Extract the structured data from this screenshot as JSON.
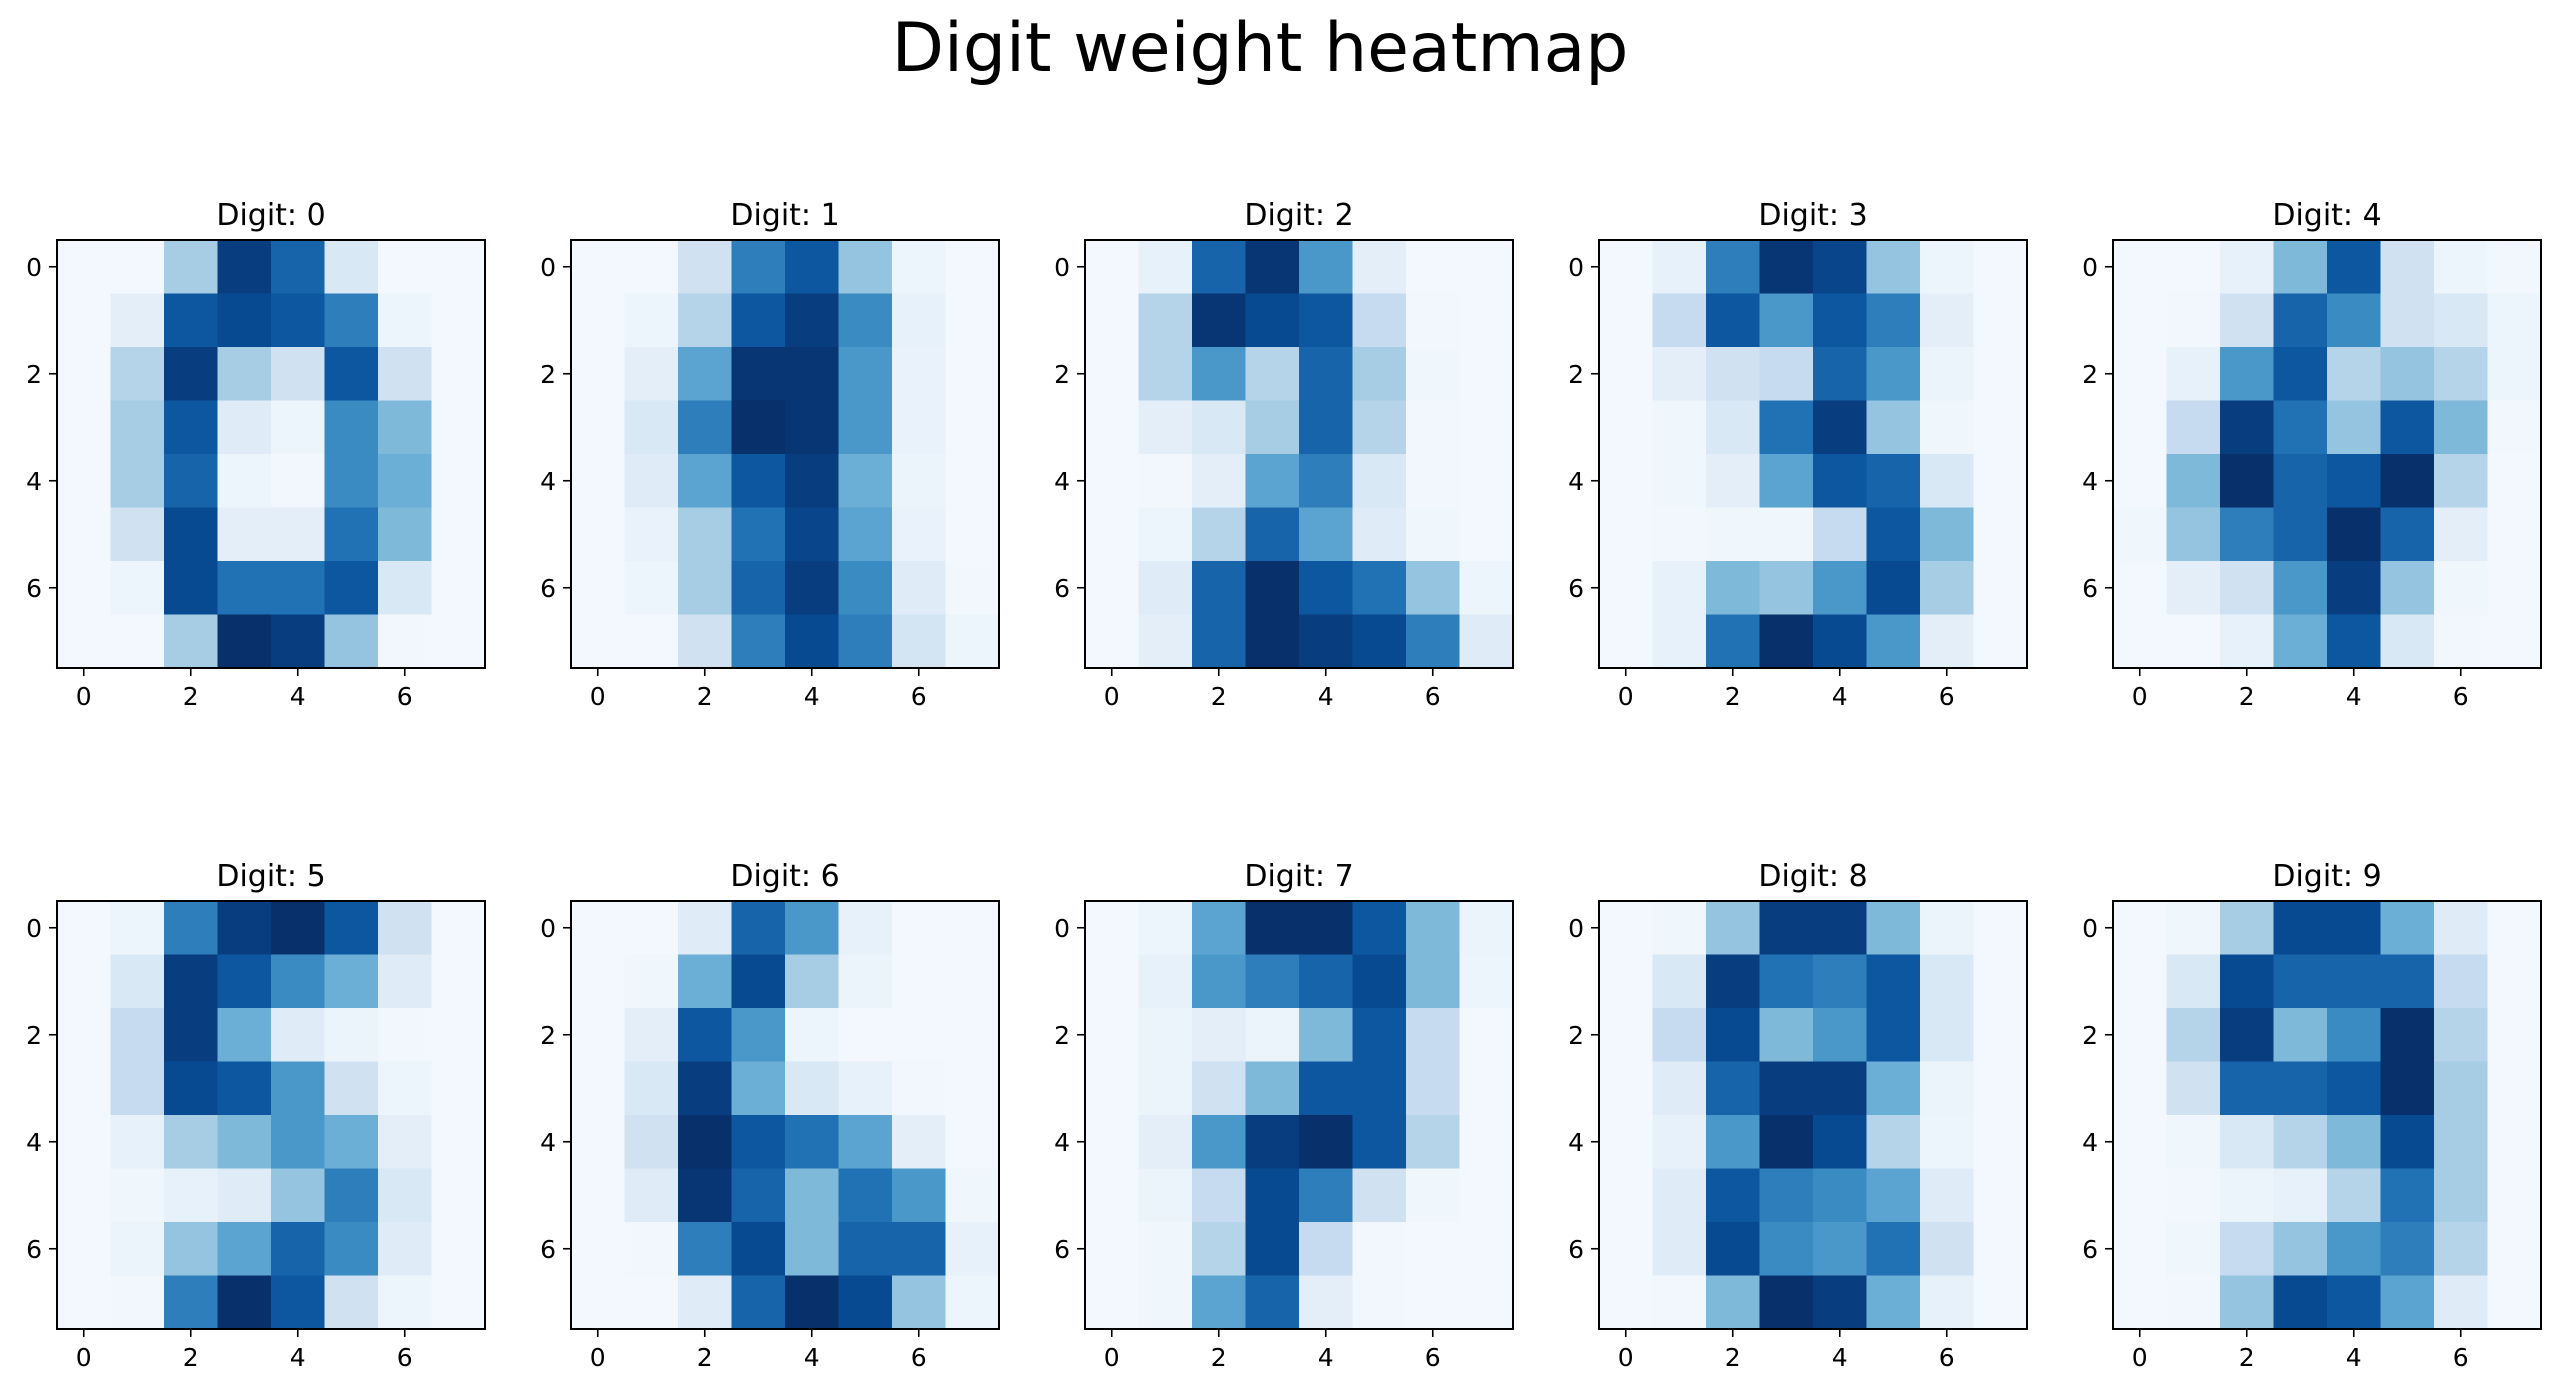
{
  "page": {
    "title": "Digit weight heatmap"
  },
  "chart_data": {
    "type": "heatmap",
    "title": "Digit weight heatmap",
    "colormap": "Blues",
    "layout": "2 rows x 5 columns",
    "grid": false,
    "x_ticks": [
      "0",
      "2",
      "4",
      "6"
    ],
    "y_ticks": [
      "0",
      "2",
      "4",
      "6"
    ],
    "xlim": [
      -0.5,
      7.5
    ],
    "ylim": [
      7.5,
      -0.5
    ],
    "value_range": [
      0,
      1
    ],
    "panels": [
      {
        "title": "Digit: 0",
        "values": [
          [
            0.02,
            0.02,
            0.35,
            0.95,
            0.8,
            0.15,
            0.02,
            0.02
          ],
          [
            0.02,
            0.1,
            0.85,
            0.9,
            0.85,
            0.7,
            0.05,
            0.02
          ],
          [
            0.02,
            0.3,
            0.95,
            0.35,
            0.2,
            0.85,
            0.2,
            0.02
          ],
          [
            0.02,
            0.35,
            0.85,
            0.12,
            0.05,
            0.65,
            0.45,
            0.02
          ],
          [
            0.02,
            0.35,
            0.8,
            0.05,
            0.03,
            0.65,
            0.5,
            0.02
          ],
          [
            0.02,
            0.2,
            0.9,
            0.1,
            0.1,
            0.75,
            0.45,
            0.02
          ],
          [
            0.02,
            0.05,
            0.9,
            0.75,
            0.75,
            0.85,
            0.15,
            0.02
          ],
          [
            0.02,
            0.02,
            0.35,
            1.0,
            0.95,
            0.4,
            0.03,
            0.02
          ]
        ]
      },
      {
        "title": "Digit: 1",
        "values": [
          [
            0.02,
            0.02,
            0.2,
            0.7,
            0.85,
            0.4,
            0.05,
            0.02
          ],
          [
            0.02,
            0.05,
            0.3,
            0.85,
            0.95,
            0.65,
            0.08,
            0.02
          ],
          [
            0.02,
            0.1,
            0.55,
            0.98,
            0.98,
            0.6,
            0.07,
            0.02
          ],
          [
            0.02,
            0.15,
            0.7,
            1.0,
            0.98,
            0.6,
            0.07,
            0.02
          ],
          [
            0.02,
            0.12,
            0.55,
            0.85,
            0.95,
            0.5,
            0.06,
            0.02
          ],
          [
            0.02,
            0.07,
            0.35,
            0.75,
            0.92,
            0.55,
            0.07,
            0.02
          ],
          [
            0.02,
            0.05,
            0.35,
            0.8,
            0.95,
            0.65,
            0.12,
            0.03
          ],
          [
            0.02,
            0.02,
            0.2,
            0.7,
            0.9,
            0.7,
            0.18,
            0.05
          ]
        ]
      },
      {
        "title": "Digit: 2",
        "values": [
          [
            0.02,
            0.08,
            0.8,
            0.98,
            0.6,
            0.1,
            0.02,
            0.02
          ],
          [
            0.02,
            0.3,
            0.98,
            0.9,
            0.85,
            0.25,
            0.03,
            0.02
          ],
          [
            0.02,
            0.3,
            0.6,
            0.3,
            0.8,
            0.35,
            0.04,
            0.02
          ],
          [
            0.02,
            0.1,
            0.15,
            0.35,
            0.8,
            0.3,
            0.03,
            0.02
          ],
          [
            0.02,
            0.03,
            0.1,
            0.55,
            0.7,
            0.15,
            0.03,
            0.02
          ],
          [
            0.02,
            0.05,
            0.3,
            0.8,
            0.55,
            0.12,
            0.04,
            0.02
          ],
          [
            0.02,
            0.12,
            0.8,
            1.0,
            0.85,
            0.75,
            0.4,
            0.05
          ],
          [
            0.02,
            0.1,
            0.8,
            1.0,
            0.95,
            0.9,
            0.7,
            0.12
          ]
        ]
      },
      {
        "title": "Digit: 3",
        "values": [
          [
            0.02,
            0.08,
            0.7,
            0.98,
            0.92,
            0.4,
            0.05,
            0.02
          ],
          [
            0.02,
            0.25,
            0.85,
            0.6,
            0.85,
            0.7,
            0.1,
            0.02
          ],
          [
            0.02,
            0.1,
            0.2,
            0.25,
            0.8,
            0.6,
            0.06,
            0.02
          ],
          [
            0.02,
            0.04,
            0.15,
            0.75,
            0.95,
            0.4,
            0.04,
            0.02
          ],
          [
            0.02,
            0.04,
            0.1,
            0.55,
            0.85,
            0.8,
            0.15,
            0.02
          ],
          [
            0.02,
            0.03,
            0.04,
            0.04,
            0.25,
            0.85,
            0.45,
            0.02
          ],
          [
            0.02,
            0.08,
            0.45,
            0.4,
            0.6,
            0.9,
            0.35,
            0.02
          ],
          [
            0.02,
            0.08,
            0.75,
            1.0,
            0.9,
            0.6,
            0.1,
            0.02
          ]
        ]
      },
      {
        "title": "Digit: 4",
        "values": [
          [
            0.02,
            0.02,
            0.08,
            0.45,
            0.85,
            0.2,
            0.05,
            0.03
          ],
          [
            0.02,
            0.03,
            0.2,
            0.8,
            0.65,
            0.2,
            0.15,
            0.05
          ],
          [
            0.02,
            0.08,
            0.6,
            0.85,
            0.3,
            0.4,
            0.3,
            0.05
          ],
          [
            0.02,
            0.25,
            0.95,
            0.75,
            0.4,
            0.85,
            0.45,
            0.03
          ],
          [
            0.02,
            0.45,
            1.0,
            0.8,
            0.85,
            1.0,
            0.3,
            0.02
          ],
          [
            0.04,
            0.4,
            0.7,
            0.8,
            1.0,
            0.8,
            0.1,
            0.02
          ],
          [
            0.02,
            0.1,
            0.2,
            0.6,
            0.95,
            0.4,
            0.04,
            0.02
          ],
          [
            0.02,
            0.02,
            0.08,
            0.5,
            0.85,
            0.15,
            0.03,
            0.02
          ]
        ]
      },
      {
        "title": "Digit: 5",
        "values": [
          [
            0.02,
            0.05,
            0.7,
            0.95,
            1.0,
            0.85,
            0.2,
            0.02
          ],
          [
            0.02,
            0.15,
            0.95,
            0.85,
            0.65,
            0.5,
            0.12,
            0.02
          ],
          [
            0.02,
            0.25,
            0.95,
            0.5,
            0.12,
            0.06,
            0.03,
            0.02
          ],
          [
            0.02,
            0.25,
            0.9,
            0.85,
            0.6,
            0.2,
            0.05,
            0.02
          ],
          [
            0.02,
            0.08,
            0.35,
            0.45,
            0.6,
            0.5,
            0.1,
            0.02
          ],
          [
            0.02,
            0.04,
            0.08,
            0.12,
            0.4,
            0.7,
            0.15,
            0.02
          ],
          [
            0.02,
            0.06,
            0.4,
            0.55,
            0.8,
            0.65,
            0.12,
            0.02
          ],
          [
            0.02,
            0.03,
            0.7,
            1.0,
            0.85,
            0.2,
            0.05,
            0.02
          ]
        ]
      },
      {
        "title": "Digit: 6",
        "values": [
          [
            0.02,
            0.02,
            0.12,
            0.8,
            0.6,
            0.08,
            0.02,
            0.02
          ],
          [
            0.02,
            0.04,
            0.5,
            0.9,
            0.35,
            0.06,
            0.02,
            0.02
          ],
          [
            0.02,
            0.1,
            0.85,
            0.6,
            0.05,
            0.02,
            0.02,
            0.02
          ],
          [
            0.02,
            0.15,
            0.95,
            0.5,
            0.15,
            0.08,
            0.03,
            0.02
          ],
          [
            0.02,
            0.2,
            1.0,
            0.85,
            0.75,
            0.55,
            0.1,
            0.02
          ],
          [
            0.02,
            0.12,
            0.98,
            0.8,
            0.45,
            0.75,
            0.6,
            0.04
          ],
          [
            0.02,
            0.03,
            0.7,
            0.9,
            0.45,
            0.8,
            0.8,
            0.08
          ],
          [
            0.02,
            0.02,
            0.12,
            0.8,
            1.0,
            0.9,
            0.4,
            0.05
          ]
        ]
      },
      {
        "title": "Digit: 7",
        "values": [
          [
            0.02,
            0.05,
            0.55,
            1.0,
            1.0,
            0.85,
            0.45,
            0.06
          ],
          [
            0.02,
            0.08,
            0.6,
            0.7,
            0.8,
            0.9,
            0.45,
            0.05
          ],
          [
            0.02,
            0.06,
            0.1,
            0.06,
            0.45,
            0.85,
            0.25,
            0.02
          ],
          [
            0.02,
            0.06,
            0.2,
            0.45,
            0.85,
            0.85,
            0.25,
            0.02
          ],
          [
            0.02,
            0.1,
            0.6,
            0.95,
            1.0,
            0.85,
            0.3,
            0.02
          ],
          [
            0.02,
            0.06,
            0.25,
            0.9,
            0.7,
            0.2,
            0.04,
            0.02
          ],
          [
            0.02,
            0.04,
            0.3,
            0.9,
            0.25,
            0.03,
            0.02,
            0.02
          ],
          [
            0.02,
            0.04,
            0.55,
            0.8,
            0.1,
            0.03,
            0.02,
            0.02
          ]
        ]
      },
      {
        "title": "Digit: 8",
        "values": [
          [
            0.02,
            0.04,
            0.4,
            0.95,
            0.95,
            0.45,
            0.06,
            0.02
          ],
          [
            0.02,
            0.15,
            0.95,
            0.75,
            0.7,
            0.85,
            0.15,
            0.02
          ],
          [
            0.02,
            0.25,
            0.9,
            0.45,
            0.6,
            0.85,
            0.15,
            0.02
          ],
          [
            0.02,
            0.12,
            0.8,
            0.95,
            0.95,
            0.5,
            0.06,
            0.02
          ],
          [
            0.02,
            0.08,
            0.6,
            1.0,
            0.9,
            0.3,
            0.05,
            0.02
          ],
          [
            0.02,
            0.12,
            0.85,
            0.7,
            0.65,
            0.55,
            0.12,
            0.02
          ],
          [
            0.02,
            0.12,
            0.9,
            0.65,
            0.6,
            0.75,
            0.2,
            0.02
          ],
          [
            0.02,
            0.03,
            0.45,
            1.0,
            0.95,
            0.5,
            0.08,
            0.02
          ]
        ]
      },
      {
        "title": "Digit: 9",
        "values": [
          [
            0.02,
            0.04,
            0.35,
            0.9,
            0.9,
            0.5,
            0.12,
            0.02
          ],
          [
            0.02,
            0.15,
            0.9,
            0.8,
            0.8,
            0.8,
            0.25,
            0.02
          ],
          [
            0.02,
            0.3,
            0.95,
            0.45,
            0.65,
            1.0,
            0.3,
            0.02
          ],
          [
            0.02,
            0.2,
            0.8,
            0.8,
            0.85,
            1.0,
            0.35,
            0.02
          ],
          [
            0.02,
            0.04,
            0.15,
            0.3,
            0.45,
            0.9,
            0.35,
            0.02
          ],
          [
            0.02,
            0.03,
            0.06,
            0.08,
            0.3,
            0.75,
            0.35,
            0.02
          ],
          [
            0.02,
            0.04,
            0.25,
            0.4,
            0.6,
            0.7,
            0.3,
            0.02
          ],
          [
            0.02,
            0.03,
            0.4,
            0.9,
            0.85,
            0.55,
            0.12,
            0.02
          ]
        ]
      }
    ]
  }
}
